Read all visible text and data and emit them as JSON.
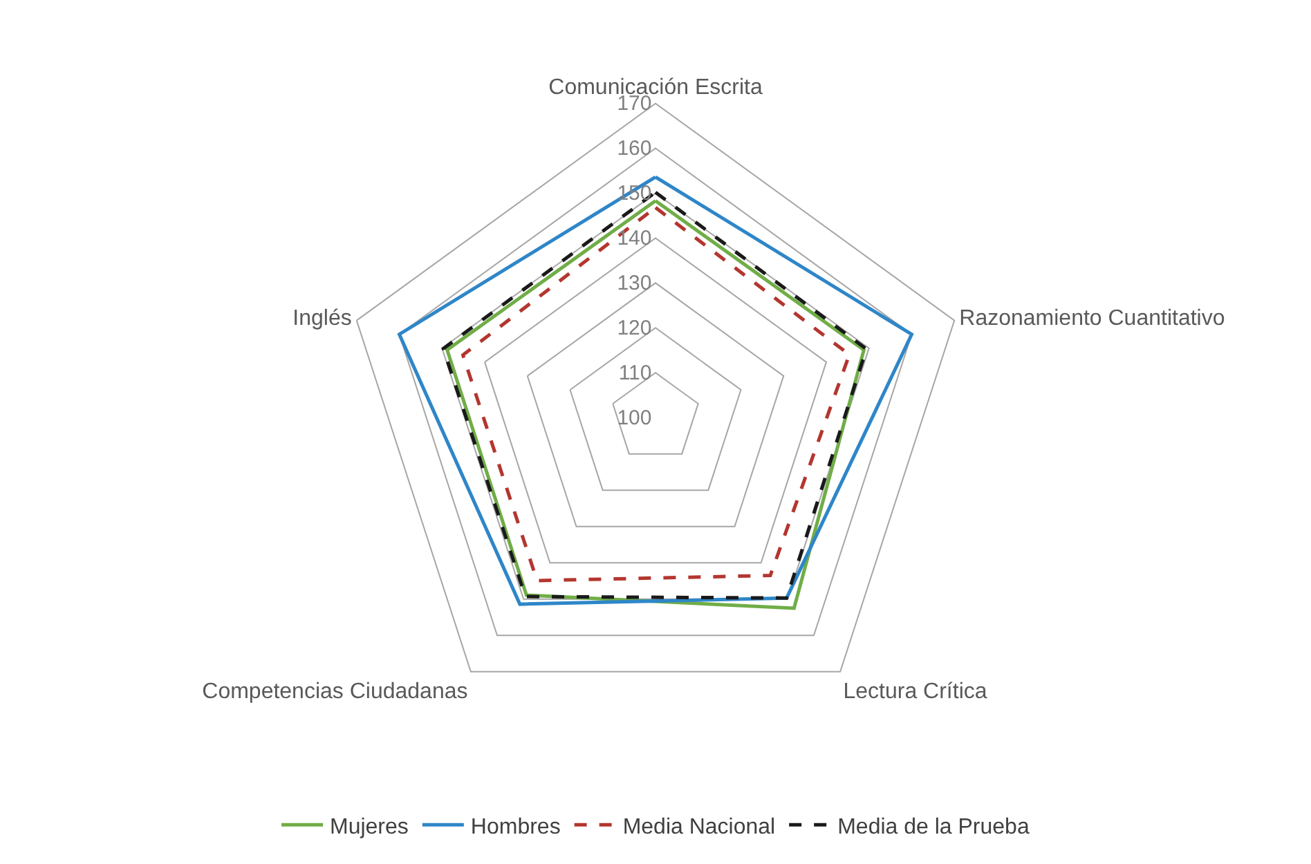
{
  "chart_data": {
    "type": "radar",
    "categories": [
      "Comunicación Escrita",
      "Razonamiento Cuantitativo",
      "Lectura Crítica",
      "Competencias Ciudadanas",
      "Inglés"
    ],
    "ylim": [
      100,
      170
    ],
    "yticks": [
      100,
      110,
      120,
      130,
      140,
      150,
      160,
      170
    ],
    "grid": true,
    "legend": "bottom",
    "marker": "none",
    "series": [
      {
        "name": "Mujeres",
        "color": "#70ad47",
        "line_style": "solid",
        "values": [
          148.3,
          148.8,
          152.5,
          148.9,
          148.8
        ]
      },
      {
        "name": "Hombres",
        "color": "#2e86c8",
        "line_style": "solid",
        "values": [
          153.6,
          160,
          149.7,
          151.4,
          160
        ]
      },
      {
        "name": "Media Nacional",
        "color": "#b3362f",
        "line_style": "dashed",
        "values": [
          146.8,
          145.4,
          143.5,
          144.9,
          145.1
        ]
      },
      {
        "name": "Media de la Prueba",
        "color": "#1a1a1a",
        "line_style": "dashed",
        "values": [
          150.2,
          149.4,
          149.7,
          149.3,
          149.7
        ]
      }
    ]
  }
}
